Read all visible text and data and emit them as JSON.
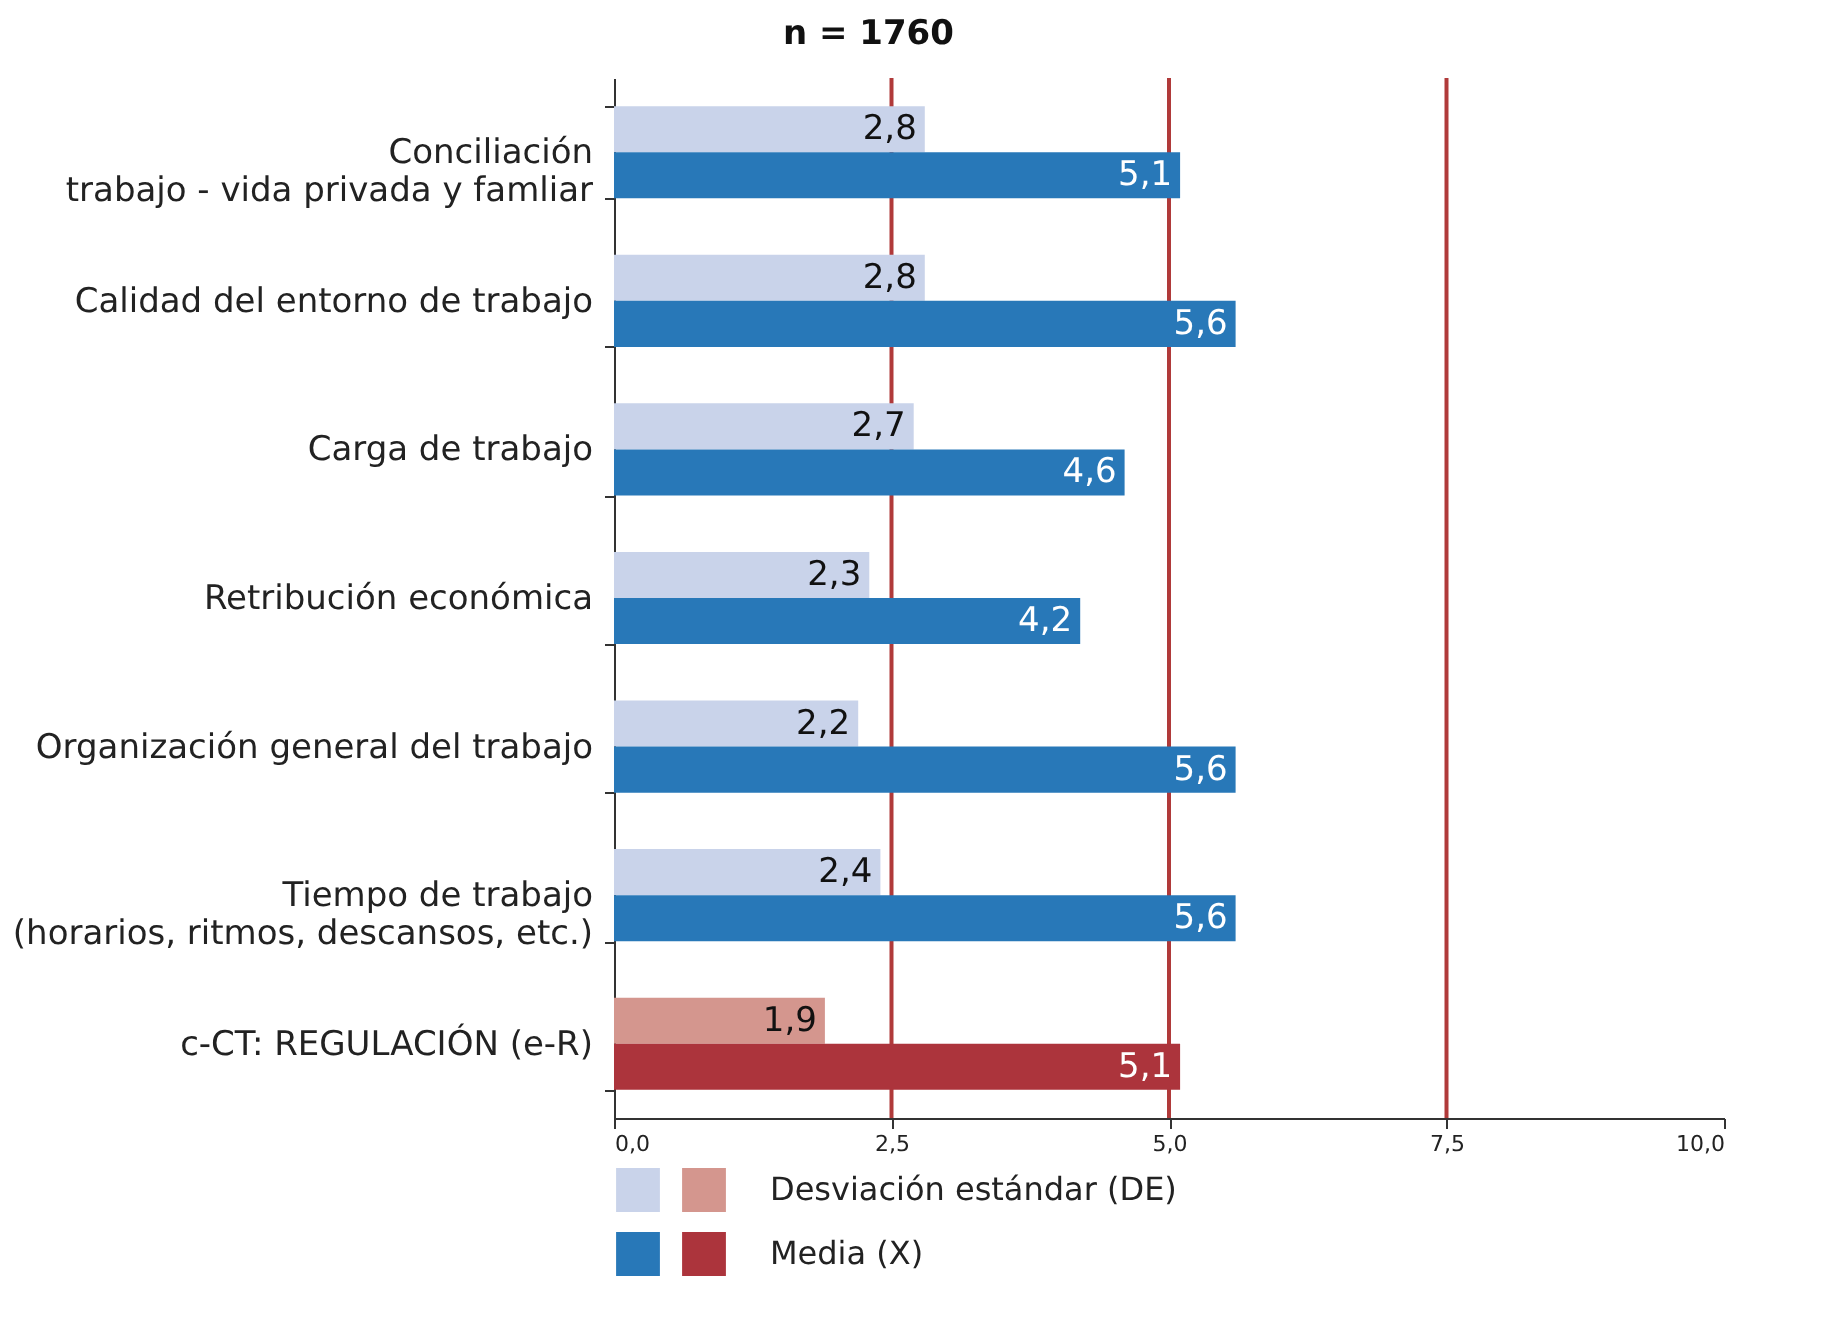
{
  "chart_data": {
    "type": "bar",
    "orientation": "horizontal",
    "title": "n = 1760",
    "categories": [
      "Conciliación\ntrabajo - vida privada y famliar",
      "Calidad del entorno de trabajo",
      "Carga de trabajo",
      "Retribución económica",
      "Organización general del trabajo",
      "Tiempo de trabajo\n(horarios, ritmos, descansos, etc.)",
      "c-CT: REGULACIÓN (e-R)"
    ],
    "series": [
      {
        "name": "Desviación estándar (DE)",
        "colors": [
          "#c9d3ea",
          "#c9d3ea",
          "#c9d3ea",
          "#c9d3ea",
          "#c9d3ea",
          "#c9d3ea",
          "#d4968e"
        ],
        "values": [
          2.8,
          2.8,
          2.7,
          2.3,
          2.2,
          2.4,
          1.9
        ],
        "value_labels": [
          "2,8",
          "2,8",
          "2,7",
          "2,3",
          "2,2",
          "2,4",
          "1,9"
        ]
      },
      {
        "name": "Media (X)",
        "colors": [
          "#2878b8",
          "#2878b8",
          "#2878b8",
          "#2878b8",
          "#2878b8",
          "#2878b8",
          "#ac343c"
        ],
        "values": [
          5.1,
          5.6,
          4.6,
          4.2,
          5.6,
          5.6,
          5.1
        ],
        "value_labels": [
          "5,1",
          "5,6",
          "4,6",
          "4,2",
          "5,6",
          "5,6",
          "5,1"
        ]
      }
    ],
    "xlim": [
      0,
      10
    ],
    "xticks": [
      {
        "value": 0,
        "label": "0,0"
      },
      {
        "value": 2.5,
        "label": "2,5"
      },
      {
        "value": 5,
        "label": "5,0"
      },
      {
        "value": 7.5,
        "label": "7,5"
      },
      {
        "value": 10,
        "label": "10,0"
      }
    ],
    "ref_lines": [
      {
        "axis": "x",
        "value": 2.5,
        "color": "#b03a3a"
      },
      {
        "axis": "x",
        "value": 5,
        "color": "#b03a3a"
      },
      {
        "axis": "x",
        "value": 7.5,
        "color": "#b03a3a"
      }
    ],
    "legend": "bottom",
    "grid": false
  }
}
